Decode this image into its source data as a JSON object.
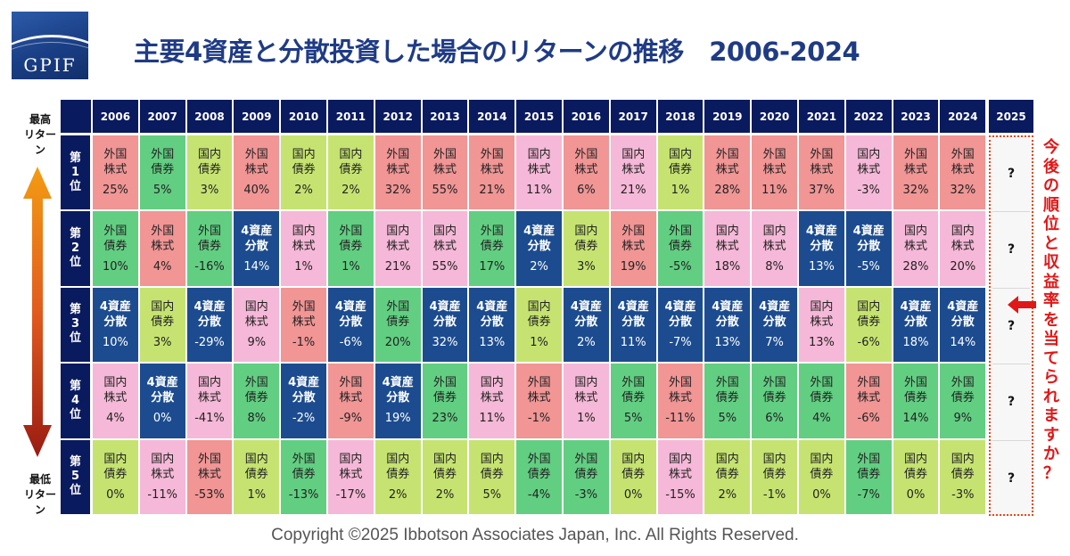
{
  "header": {
    "logo_text": "GPIF",
    "title": "主要4資産と分散投資した場合のリターンの推移　2006-2024"
  },
  "side": {
    "best_line1": "最高",
    "best_line2": "リターン",
    "worst_line1": "最低",
    "worst_line2": "リターン"
  },
  "ranks": [
    [
      "第",
      "1",
      "位"
    ],
    [
      "第",
      "2",
      "位"
    ],
    [
      "第",
      "3",
      "位"
    ],
    [
      "第",
      "4",
      "位"
    ],
    [
      "第",
      "5",
      "位"
    ]
  ],
  "next_year": "2025",
  "next_year_mark": "?",
  "vertical_note": "今後の順位と収益率を当てられますか？",
  "footer": {
    "copyright": "Copyright ©2025 Ibbotson Associates Japan, Inc. All Rights Reserved."
  },
  "asset_colors": {
    "外国株式": "#f19595",
    "国内株式": "#f6b8d8",
    "外国債券": "#62ce82",
    "国内債券": "#c6e371",
    "4資産分散": "#1c4c8f"
  },
  "chart_data": {
    "type": "table",
    "title": "主要4資産と分散投資した場合のリターンの推移　2006-2024",
    "years": [
      "2006",
      "2007",
      "2008",
      "2009",
      "2010",
      "2011",
      "2012",
      "2013",
      "2014",
      "2015",
      "2016",
      "2017",
      "2018",
      "2019",
      "2020",
      "2021",
      "2022",
      "2023",
      "2024"
    ],
    "rows": [
      [
        {
          "l1": "外国",
          "l2": "株式",
          "asset": "外国株式",
          "r": "25%"
        },
        {
          "l1": "外国",
          "l2": "債券",
          "asset": "外国債券",
          "r": "5%"
        },
        {
          "l1": "国内",
          "l2": "債券",
          "asset": "国内債券",
          "r": "3%"
        },
        {
          "l1": "外国",
          "l2": "株式",
          "asset": "外国株式",
          "r": "40%"
        },
        {
          "l1": "国内",
          "l2": "債券",
          "asset": "国内債券",
          "r": "2%"
        },
        {
          "l1": "国内",
          "l2": "債券",
          "asset": "国内債券",
          "r": "2%"
        },
        {
          "l1": "外国",
          "l2": "株式",
          "asset": "外国株式",
          "r": "32%"
        },
        {
          "l1": "外国",
          "l2": "株式",
          "asset": "外国株式",
          "r": "55%"
        },
        {
          "l1": "外国",
          "l2": "株式",
          "asset": "外国株式",
          "r": "21%"
        },
        {
          "l1": "国内",
          "l2": "株式",
          "asset": "国内株式",
          "r": "11%"
        },
        {
          "l1": "外国",
          "l2": "株式",
          "asset": "外国株式",
          "r": "6%"
        },
        {
          "l1": "国内",
          "l2": "株式",
          "asset": "国内株式",
          "r": "21%"
        },
        {
          "l1": "国内",
          "l2": "債券",
          "asset": "国内債券",
          "r": "1%"
        },
        {
          "l1": "外国",
          "l2": "株式",
          "asset": "外国株式",
          "r": "28%"
        },
        {
          "l1": "外国",
          "l2": "株式",
          "asset": "外国株式",
          "r": "11%"
        },
        {
          "l1": "外国",
          "l2": "株式",
          "asset": "外国株式",
          "r": "37%"
        },
        {
          "l1": "国内",
          "l2": "株式",
          "asset": "国内株式",
          "r": "-3%"
        },
        {
          "l1": "外国",
          "l2": "株式",
          "asset": "外国株式",
          "r": "32%"
        },
        {
          "l1": "外国",
          "l2": "株式",
          "asset": "外国株式",
          "r": "32%"
        }
      ],
      [
        {
          "l1": "外国",
          "l2": "債券",
          "asset": "外国債券",
          "r": "10%"
        },
        {
          "l1": "外国",
          "l2": "株式",
          "asset": "外国株式",
          "r": "4%"
        },
        {
          "l1": "外国",
          "l2": "債券",
          "asset": "外国債券",
          "r": "-16%"
        },
        {
          "l1": "4資産",
          "l2": "分散",
          "asset": "4資産分散",
          "r": "14%"
        },
        {
          "l1": "国内",
          "l2": "株式",
          "asset": "国内株式",
          "r": "1%"
        },
        {
          "l1": "外国",
          "l2": "債券",
          "asset": "外国債券",
          "r": "1%"
        },
        {
          "l1": "国内",
          "l2": "株式",
          "asset": "国内株式",
          "r": "21%"
        },
        {
          "l1": "国内",
          "l2": "株式",
          "asset": "国内株式",
          "r": "55%"
        },
        {
          "l1": "外国",
          "l2": "債券",
          "asset": "外国債券",
          "r": "17%"
        },
        {
          "l1": "4資産",
          "l2": "分散",
          "asset": "4資産分散",
          "r": "2%"
        },
        {
          "l1": "国内",
          "l2": "債券",
          "asset": "国内債券",
          "r": "3%"
        },
        {
          "l1": "外国",
          "l2": "株式",
          "asset": "外国株式",
          "r": "19%"
        },
        {
          "l1": "外国",
          "l2": "債券",
          "asset": "外国債券",
          "r": "-5%"
        },
        {
          "l1": "国内",
          "l2": "株式",
          "asset": "国内株式",
          "r": "18%"
        },
        {
          "l1": "国内",
          "l2": "株式",
          "asset": "国内株式",
          "r": "8%"
        },
        {
          "l1": "4資産",
          "l2": "分散",
          "asset": "4資産分散",
          "r": "13%"
        },
        {
          "l1": "4資産",
          "l2": "分散",
          "asset": "4資産分散",
          "r": "-5%"
        },
        {
          "l1": "国内",
          "l2": "株式",
          "asset": "国内株式",
          "r": "28%"
        },
        {
          "l1": "国内",
          "l2": "株式",
          "asset": "国内株式",
          "r": "20%"
        }
      ],
      [
        {
          "l1": "4資産",
          "l2": "分散",
          "asset": "4資産分散",
          "r": "10%"
        },
        {
          "l1": "国内",
          "l2": "債券",
          "asset": "国内債券",
          "r": "3%"
        },
        {
          "l1": "4資産",
          "l2": "分散",
          "asset": "4資産分散",
          "r": "-29%"
        },
        {
          "l1": "国内",
          "l2": "株式",
          "asset": "国内株式",
          "r": "9%"
        },
        {
          "l1": "外国",
          "l2": "株式",
          "asset": "外国株式",
          "r": "-1%"
        },
        {
          "l1": "4資産",
          "l2": "分散",
          "asset": "4資産分散",
          "r": "-6%"
        },
        {
          "l1": "外国",
          "l2": "債券",
          "asset": "外国債券",
          "r": "20%"
        },
        {
          "l1": "4資産",
          "l2": "分散",
          "asset": "4資産分散",
          "r": "32%"
        },
        {
          "l1": "4資産",
          "l2": "分散",
          "asset": "4資産分散",
          "r": "13%"
        },
        {
          "l1": "国内",
          "l2": "債券",
          "asset": "国内債券",
          "r": "1%"
        },
        {
          "l1": "4資産",
          "l2": "分散",
          "asset": "4資産分散",
          "r": "2%"
        },
        {
          "l1": "4資産",
          "l2": "分散",
          "asset": "4資産分散",
          "r": "11%"
        },
        {
          "l1": "4資産",
          "l2": "分散",
          "asset": "4資産分散",
          "r": "-7%"
        },
        {
          "l1": "4資産",
          "l2": "分散",
          "asset": "4資産分散",
          "r": "13%"
        },
        {
          "l1": "4資産",
          "l2": "分散",
          "asset": "4資産分散",
          "r": "7%"
        },
        {
          "l1": "国内",
          "l2": "株式",
          "asset": "国内株式",
          "r": "13%"
        },
        {
          "l1": "国内",
          "l2": "債券",
          "asset": "国内債券",
          "r": "-6%"
        },
        {
          "l1": "4資産",
          "l2": "分散",
          "asset": "4資産分散",
          "r": "18%"
        },
        {
          "l1": "4資産",
          "l2": "分散",
          "asset": "4資産分散",
          "r": "14%"
        }
      ],
      [
        {
          "l1": "国内",
          "l2": "株式",
          "asset": "国内株式",
          "r": "4%"
        },
        {
          "l1": "4資産",
          "l2": "分散",
          "asset": "4資産分散",
          "r": "0%"
        },
        {
          "l1": "国内",
          "l2": "株式",
          "asset": "国内株式",
          "r": "-41%"
        },
        {
          "l1": "外国",
          "l2": "債券",
          "asset": "外国債券",
          "r": "8%"
        },
        {
          "l1": "4資産",
          "l2": "分散",
          "asset": "4資産分散",
          "r": "-2%"
        },
        {
          "l1": "外国",
          "l2": "株式",
          "asset": "外国株式",
          "r": "-9%"
        },
        {
          "l1": "4資産",
          "l2": "分散",
          "asset": "4資産分散",
          "r": "19%"
        },
        {
          "l1": "外国",
          "l2": "債券",
          "asset": "外国債券",
          "r": "23%"
        },
        {
          "l1": "国内",
          "l2": "株式",
          "asset": "国内株式",
          "r": "11%"
        },
        {
          "l1": "外国",
          "l2": "株式",
          "asset": "外国株式",
          "r": "-1%"
        },
        {
          "l1": "国内",
          "l2": "株式",
          "asset": "国内株式",
          "r": "1%"
        },
        {
          "l1": "外国",
          "l2": "債券",
          "asset": "外国債券",
          "r": "5%"
        },
        {
          "l1": "外国",
          "l2": "株式",
          "asset": "外国株式",
          "r": "-11%"
        },
        {
          "l1": "外国",
          "l2": "債券",
          "asset": "外国債券",
          "r": "5%"
        },
        {
          "l1": "外国",
          "l2": "債券",
          "asset": "外国債券",
          "r": "6%"
        },
        {
          "l1": "外国",
          "l2": "債券",
          "asset": "外国債券",
          "r": "4%"
        },
        {
          "l1": "外国",
          "l2": "株式",
          "asset": "外国株式",
          "r": "-6%"
        },
        {
          "l1": "外国",
          "l2": "債券",
          "asset": "外国債券",
          "r": "14%"
        },
        {
          "l1": "外国",
          "l2": "債券",
          "asset": "外国債券",
          "r": "9%"
        }
      ],
      [
        {
          "l1": "国内",
          "l2": "債券",
          "asset": "国内債券",
          "r": "0%"
        },
        {
          "l1": "国内",
          "l2": "株式",
          "asset": "国内株式",
          "r": "-11%"
        },
        {
          "l1": "外国",
          "l2": "株式",
          "asset": "外国株式",
          "r": "-53%"
        },
        {
          "l1": "国内",
          "l2": "債券",
          "asset": "国内債券",
          "r": "1%"
        },
        {
          "l1": "外国",
          "l2": "債券",
          "asset": "外国債券",
          "r": "-13%"
        },
        {
          "l1": "国内",
          "l2": "株式",
          "asset": "国内株式",
          "r": "-17%"
        },
        {
          "l1": "国内",
          "l2": "債券",
          "asset": "国内債券",
          "r": "2%"
        },
        {
          "l1": "国内",
          "l2": "債券",
          "asset": "国内債券",
          "r": "2%"
        },
        {
          "l1": "国内",
          "l2": "債券",
          "asset": "国内債券",
          "r": "5%"
        },
        {
          "l1": "外国",
          "l2": "債券",
          "asset": "外国債券",
          "r": "-4%"
        },
        {
          "l1": "外国",
          "l2": "債券",
          "asset": "外国債券",
          "r": "-3%"
        },
        {
          "l1": "国内",
          "l2": "債券",
          "asset": "国内債券",
          "r": "0%"
        },
        {
          "l1": "国内",
          "l2": "株式",
          "asset": "国内株式",
          "r": "-15%"
        },
        {
          "l1": "国内",
          "l2": "債券",
          "asset": "国内債券",
          "r": "2%"
        },
        {
          "l1": "国内",
          "l2": "債券",
          "asset": "国内債券",
          "r": "-1%"
        },
        {
          "l1": "国内",
          "l2": "債券",
          "asset": "国内債券",
          "r": "0%"
        },
        {
          "l1": "外国",
          "l2": "債券",
          "asset": "外国債券",
          "r": "-7%"
        },
        {
          "l1": "国内",
          "l2": "債券",
          "asset": "国内債券",
          "r": "0%"
        },
        {
          "l1": "国内",
          "l2": "債券",
          "asset": "国内債券",
          "r": "-3%"
        }
      ]
    ]
  }
}
